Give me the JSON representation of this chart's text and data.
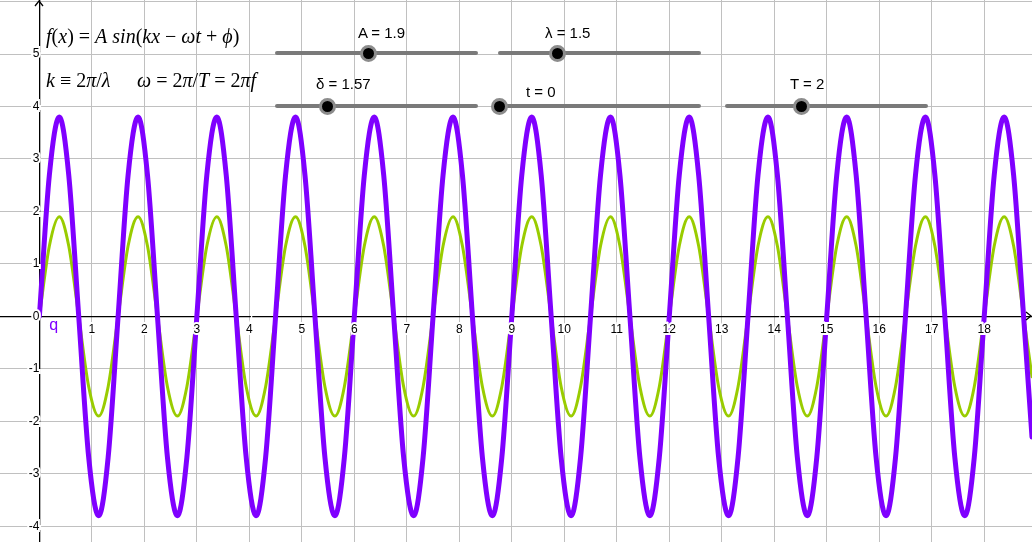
{
  "chart_data": {
    "type": "line",
    "x": [
      0,
      0.19,
      0.38,
      0.56,
      0.75,
      0.94,
      1.13,
      1.31,
      1.5,
      1.69,
      1.88,
      2.06,
      2.25,
      2.44,
      2.63,
      2.81,
      3,
      3.19,
      3.38,
      3.56,
      3.75,
      3.94,
      4.13,
      4.31,
      4.5,
      4.69,
      4.88,
      5.06,
      5.25,
      5.44,
      5.63,
      5.81,
      6,
      6.19,
      6.38,
      6.56,
      6.75,
      6.94,
      7.13,
      7.31,
      7.5,
      7.69,
      7.88,
      8.06,
      8.25,
      8.44,
      8.63,
      8.81,
      9,
      9.19,
      9.38,
      9.56,
      9.75,
      9.94,
      10.13,
      10.31,
      10.5,
      10.69,
      10.88,
      11.06,
      11.25,
      11.44,
      11.63,
      11.81,
      12,
      12.19,
      12.38,
      12.56,
      12.75,
      12.94,
      13.13,
      13.31,
      13.5,
      13.69,
      13.88,
      14.06,
      14.25,
      14.44,
      14.63,
      14.81,
      15,
      15.19,
      15.38,
      15.56,
      15.75,
      15.94,
      16.13,
      16.31,
      16.5,
      16.69,
      16.88,
      17.06,
      17.25,
      17.44,
      17.63,
      17.81,
      18,
      18.19,
      18.38,
      18.56,
      18.75,
      18.91
    ],
    "series": [
      {
        "color": "#99cc00",
        "values": [
          0,
          1.34,
          1.9,
          1.34,
          0,
          -1.34,
          -1.9,
          -1.34,
          0,
          1.34,
          1.9,
          1.34,
          0,
          -1.34,
          -1.9,
          -1.34,
          0,
          1.34,
          1.9,
          1.34,
          0,
          -1.34,
          -1.9,
          -1.34,
          0,
          1.34,
          1.9,
          1.34,
          0,
          -1.34,
          -1.9,
          -1.34,
          0,
          1.34,
          1.9,
          1.34,
          0,
          -1.34,
          -1.9,
          -1.34,
          0,
          1.34,
          1.9,
          1.34,
          0,
          -1.34,
          -1.9,
          -1.34,
          0,
          1.34,
          1.9,
          1.34,
          0,
          -1.34,
          -1.9,
          -1.34,
          0,
          1.34,
          1.9,
          1.34,
          0,
          -1.34,
          -1.9,
          -1.34,
          0,
          1.34,
          1.9,
          1.34,
          0,
          -1.34,
          -1.9,
          -1.34,
          0,
          1.34,
          1.9,
          1.34,
          0,
          -1.34,
          -1.9,
          -1.34,
          0,
          1.34,
          1.9,
          1.34,
          0,
          -1.34,
          -1.9,
          -1.34,
          0,
          1.34,
          1.9,
          1.34,
          0,
          -1.34,
          -1.9,
          -1.34,
          0,
          1.34,
          1.9,
          1.34,
          0,
          -1.15
        ]
      },
      {
        "color": "#7f00ff",
        "values": [
          0,
          2.69,
          3.8,
          2.69,
          0,
          -2.69,
          -3.8,
          -2.69,
          0,
          2.69,
          3.8,
          2.69,
          0,
          -2.69,
          -3.8,
          -2.69,
          0,
          2.69,
          3.8,
          2.69,
          0,
          -2.69,
          -3.8,
          -2.69,
          0,
          2.69,
          3.8,
          2.69,
          0,
          -2.69,
          -3.8,
          -2.69,
          0,
          2.69,
          3.8,
          2.69,
          0,
          -2.69,
          -3.8,
          -2.69,
          0,
          2.69,
          3.8,
          2.69,
          0,
          -2.69,
          -3.8,
          -2.69,
          0,
          2.69,
          3.8,
          2.69,
          0,
          -2.69,
          -3.8,
          -2.69,
          0,
          2.69,
          3.8,
          2.69,
          0,
          -2.69,
          -3.8,
          -2.69,
          0,
          2.69,
          3.8,
          2.69,
          0,
          -2.69,
          -3.8,
          -2.69,
          0,
          2.69,
          3.8,
          2.69,
          0,
          -2.69,
          -3.8,
          -2.69,
          0,
          2.69,
          3.8,
          2.69,
          0,
          -2.69,
          -3.8,
          -2.69,
          0,
          2.69,
          3.8,
          2.69,
          0,
          -2.69,
          -3.8,
          -2.69,
          0,
          2.69,
          3.8,
          2.69,
          0,
          -2.3
        ]
      }
    ],
    "xlim": [
      -0.75,
      18.91
    ],
    "ylim": [
      -4.3,
      6.03
    ],
    "xticks": [
      {
        "value": 0,
        "label": null
      },
      1,
      2,
      3,
      4,
      5,
      6,
      7,
      8,
      9,
      10,
      11,
      12,
      13,
      14,
      15,
      16,
      17,
      18
    ],
    "yticks": [
      -4,
      -3,
      -2,
      -1,
      0,
      1,
      2,
      3,
      4,
      5,
      {
        "value": 6,
        "label": null
      }
    ],
    "grid": true,
    "annotations": [
      "f(x) = A sin(kx − ωt + ϕ)",
      "k ≡ 2π/λ",
      "ω = 2π/T = 2πf",
      "A = 1.9",
      "λ = 1.5",
      "δ = 1.57",
      "t = 0",
      "T = 2",
      {
        "text": "q",
        "x": 0,
        "y": 0
      }
    ]
  }
}
